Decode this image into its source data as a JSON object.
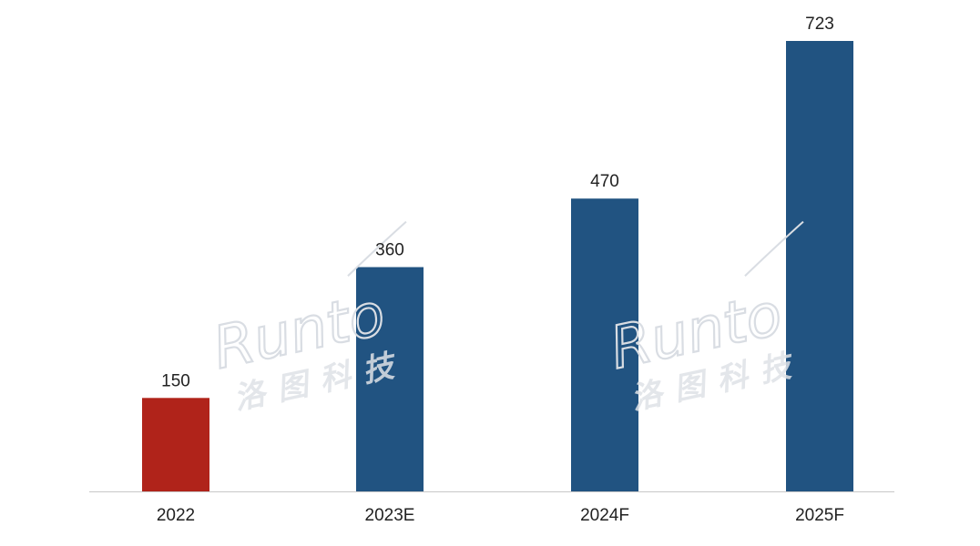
{
  "chart_data": {
    "type": "bar",
    "categories": [
      "2022",
      "2023E",
      "2024F",
      "2025F"
    ],
    "values": [
      150,
      360,
      470,
      723
    ],
    "value_labels": [
      "150",
      "360",
      "470",
      "723"
    ],
    "bar_colors": [
      "#b0231a",
      "#215381",
      "#215381",
      "#215381"
    ],
    "title": "",
    "xlabel": "",
    "ylabel": "",
    "ylim": [
      0,
      723
    ],
    "grid": false,
    "legend": "none"
  },
  "watermark": {
    "latin": "Runto",
    "chinese": "洛图科技",
    "color": "#d9dde3"
  }
}
